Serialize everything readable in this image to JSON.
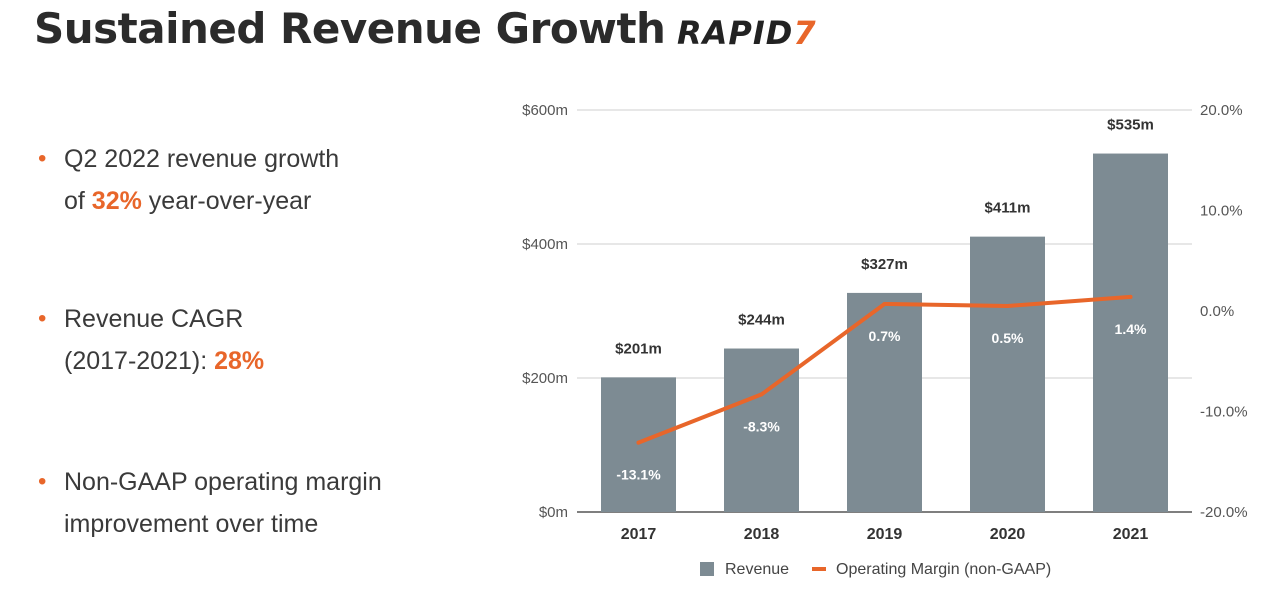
{
  "header": {
    "title": "Sustained Revenue Growth",
    "logo_main": "RAPID",
    "logo_accent": "7"
  },
  "bullets": [
    {
      "line1": "Q2 2022 revenue growth",
      "pre": "of ",
      "highlight": "32%",
      "post": " year-over-year"
    },
    {
      "line1": "Revenue CAGR",
      "pre": "(2017-2021): ",
      "highlight": "28%",
      "post": ""
    },
    {
      "line1": "Non-GAAP operating margin",
      "line2": "improvement over time"
    }
  ],
  "colors": {
    "bar": "#7d8b93",
    "line": "#e8662a",
    "accent": "#e8662a"
  },
  "chart_data": {
    "type": "bar",
    "categories": [
      "2017",
      "2018",
      "2019",
      "2020",
      "2021"
    ],
    "series": [
      {
        "name": "Revenue",
        "type": "bar",
        "axis": "left",
        "values": [
          201,
          244,
          327,
          411,
          535
        ],
        "labels": [
          "$201m",
          "$244m",
          "$327m",
          "$411m",
          "$535m"
        ]
      },
      {
        "name": "Operating Margin (non-GAAP)",
        "type": "line",
        "axis": "right",
        "values": [
          -13.1,
          -8.3,
          0.7,
          0.5,
          1.4
        ],
        "labels": [
          "-13.1%",
          "-8.3%",
          "0.7%",
          "0.5%",
          "1.4%"
        ]
      }
    ],
    "left_axis": {
      "ylim": [
        0,
        600
      ],
      "ticks": [
        0,
        200,
        400,
        600
      ],
      "tick_labels": [
        "$0m",
        "$200m",
        "$400m",
        "$600m"
      ]
    },
    "right_axis": {
      "ylim": [
        -20,
        20
      ],
      "ticks": [
        -20,
        -10,
        0,
        10,
        20
      ],
      "tick_labels": [
        "-20.0%",
        "-10.0%",
        "0.0%",
        "10.0%",
        "20.0%"
      ]
    },
    "grid": true,
    "legend": "bottom"
  }
}
